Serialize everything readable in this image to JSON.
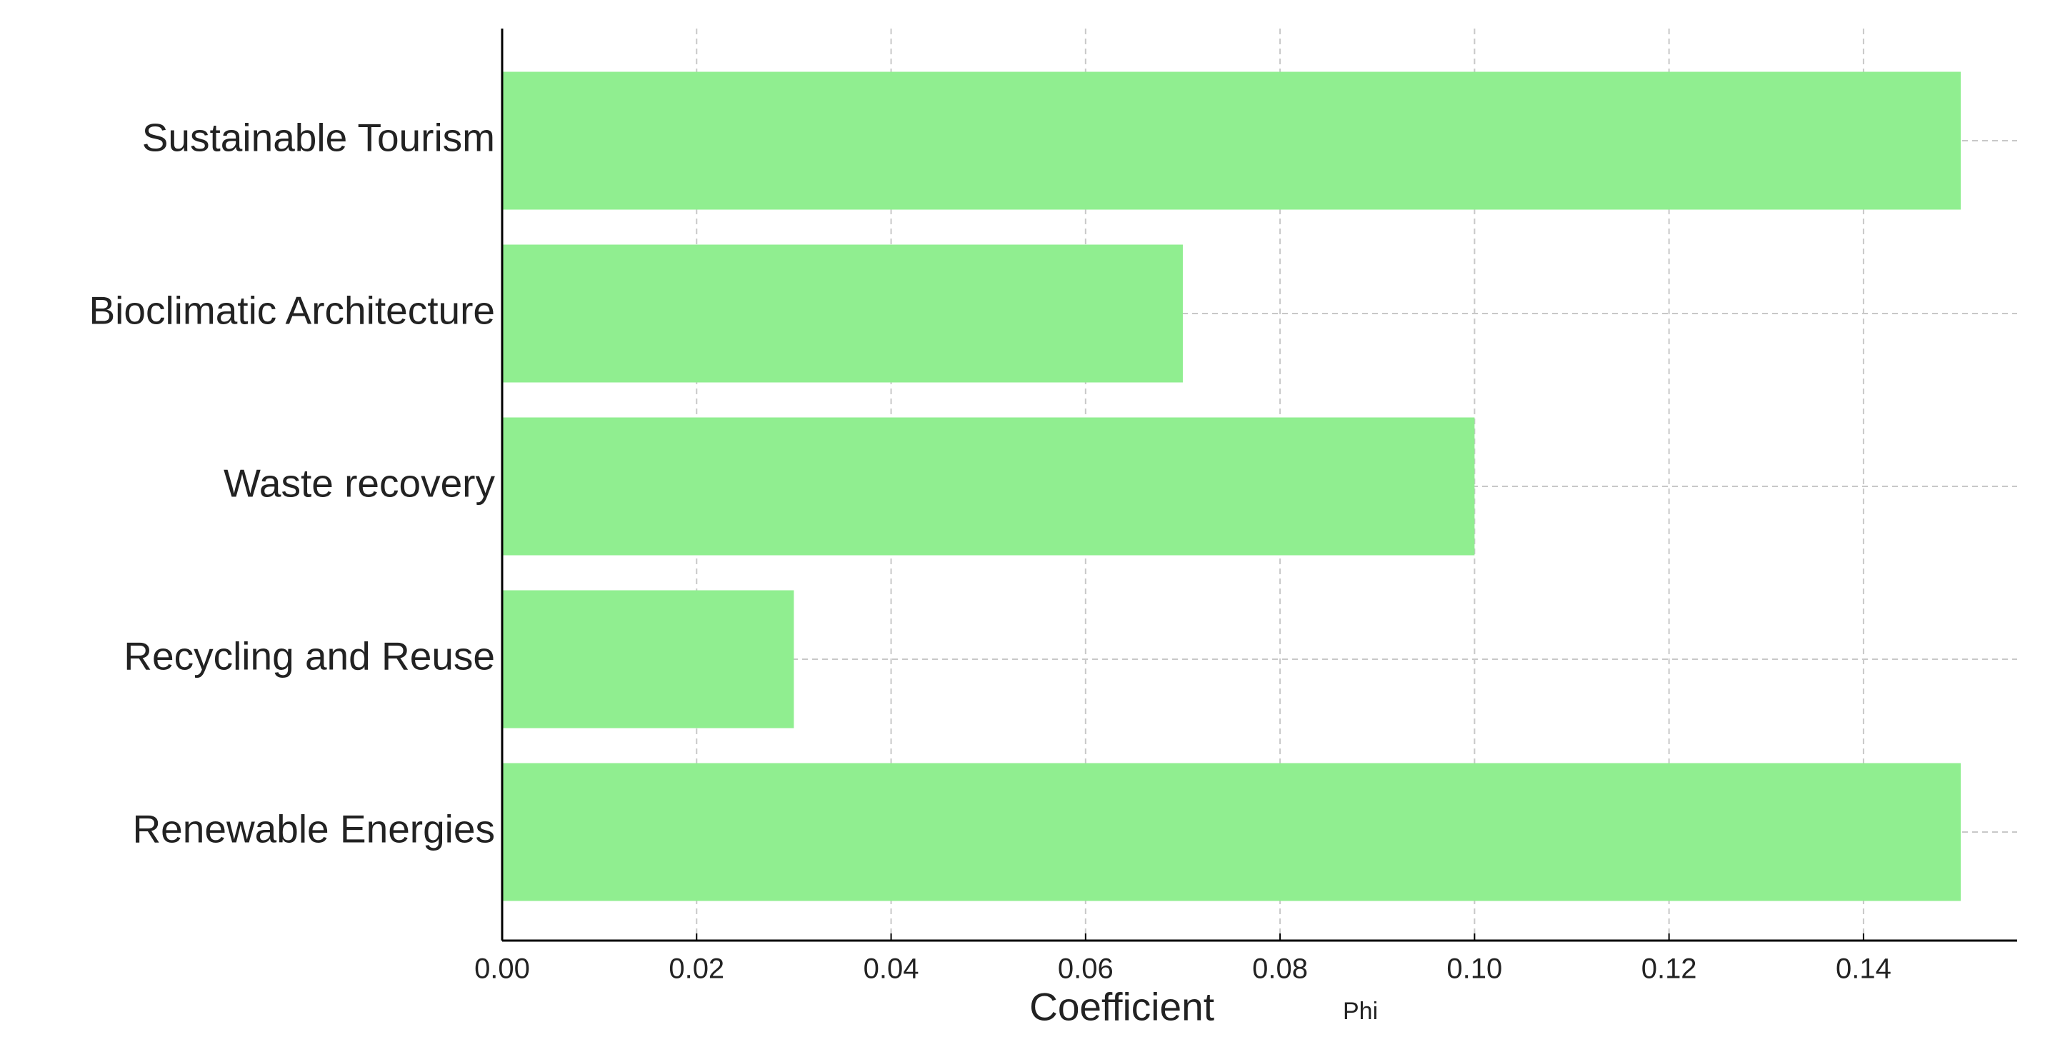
{
  "chart_data": {
    "type": "bar",
    "orientation": "horizontal",
    "categories": [
      "Sustainable Tourism",
      "Bioclimatic Architecture",
      "Waste recovery",
      "Recycling and Reuse",
      "Renewable Energies"
    ],
    "values": [
      0.15,
      0.07,
      0.1,
      0.03,
      0.15
    ],
    "color": "#90ee90",
    "xlabel": "Coefficient",
    "xlabel_note": "Phi",
    "xlim": [
      0,
      0.1558
    ],
    "xticks": [
      {
        "value": 0,
        "label": "0.00"
      },
      {
        "value": 0.02,
        "label": "0.02"
      },
      {
        "value": 0.04,
        "label": "0.04"
      },
      {
        "value": 0.06,
        "label": "0.06"
      },
      {
        "value": 0.08,
        "label": "0.08"
      },
      {
        "value": 0.1,
        "label": "0.10"
      },
      {
        "value": 0.12,
        "label": "0.12"
      },
      {
        "value": 0.14,
        "label": "0.14"
      }
    ],
    "grid": true
  }
}
